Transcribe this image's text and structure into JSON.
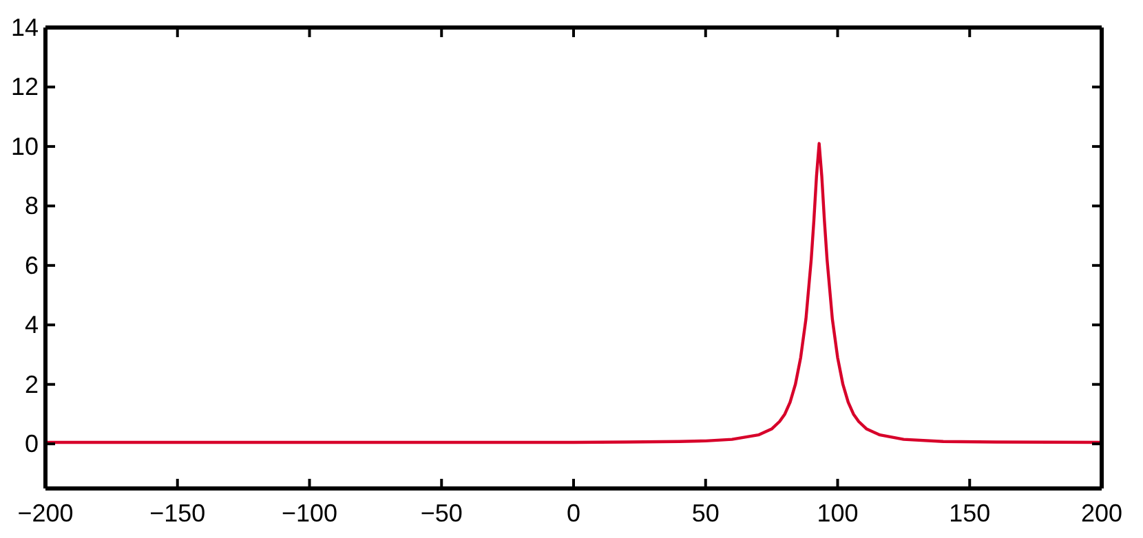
{
  "chart_data": {
    "type": "line",
    "x": [
      -200,
      -100,
      0,
      20,
      40,
      50,
      60,
      70,
      75,
      78,
      80,
      82,
      84,
      86,
      88,
      90,
      91,
      92,
      93,
      94,
      95,
      96,
      98,
      100,
      102,
      104,
      106,
      108,
      111,
      116,
      125,
      140,
      160,
      200
    ],
    "series": [
      {
        "color": "#d7002a",
        "values": [
          0.05,
          0.05,
          0.05,
          0.06,
          0.08,
          0.1,
          0.15,
          0.3,
          0.5,
          0.75,
          1.0,
          1.4,
          2.0,
          2.9,
          4.2,
          6.2,
          7.5,
          9,
          10.1,
          9,
          7.5,
          6.2,
          4.2,
          2.9,
          2.0,
          1.4,
          1.0,
          0.75,
          0.5,
          0.3,
          0.15,
          0.08,
          0.06,
          0.05
        ]
      }
    ],
    "xlim": [
      -200,
      200
    ],
    "xticks": [
      {
        "value": -200,
        "label": "−200"
      },
      {
        "value": -150,
        "label": "−150"
      },
      {
        "value": -100,
        "label": "−100"
      },
      {
        "value": -50,
        "label": "−50"
      },
      0,
      50,
      100,
      150,
      200
    ],
    "ylim": [
      -1.5,
      14
    ],
    "yticks": [
      0,
      2,
      4,
      6,
      8,
      10,
      12,
      14
    ],
    "grid": false,
    "legend": false,
    "marker": "none",
    "line_style": "solid"
  }
}
